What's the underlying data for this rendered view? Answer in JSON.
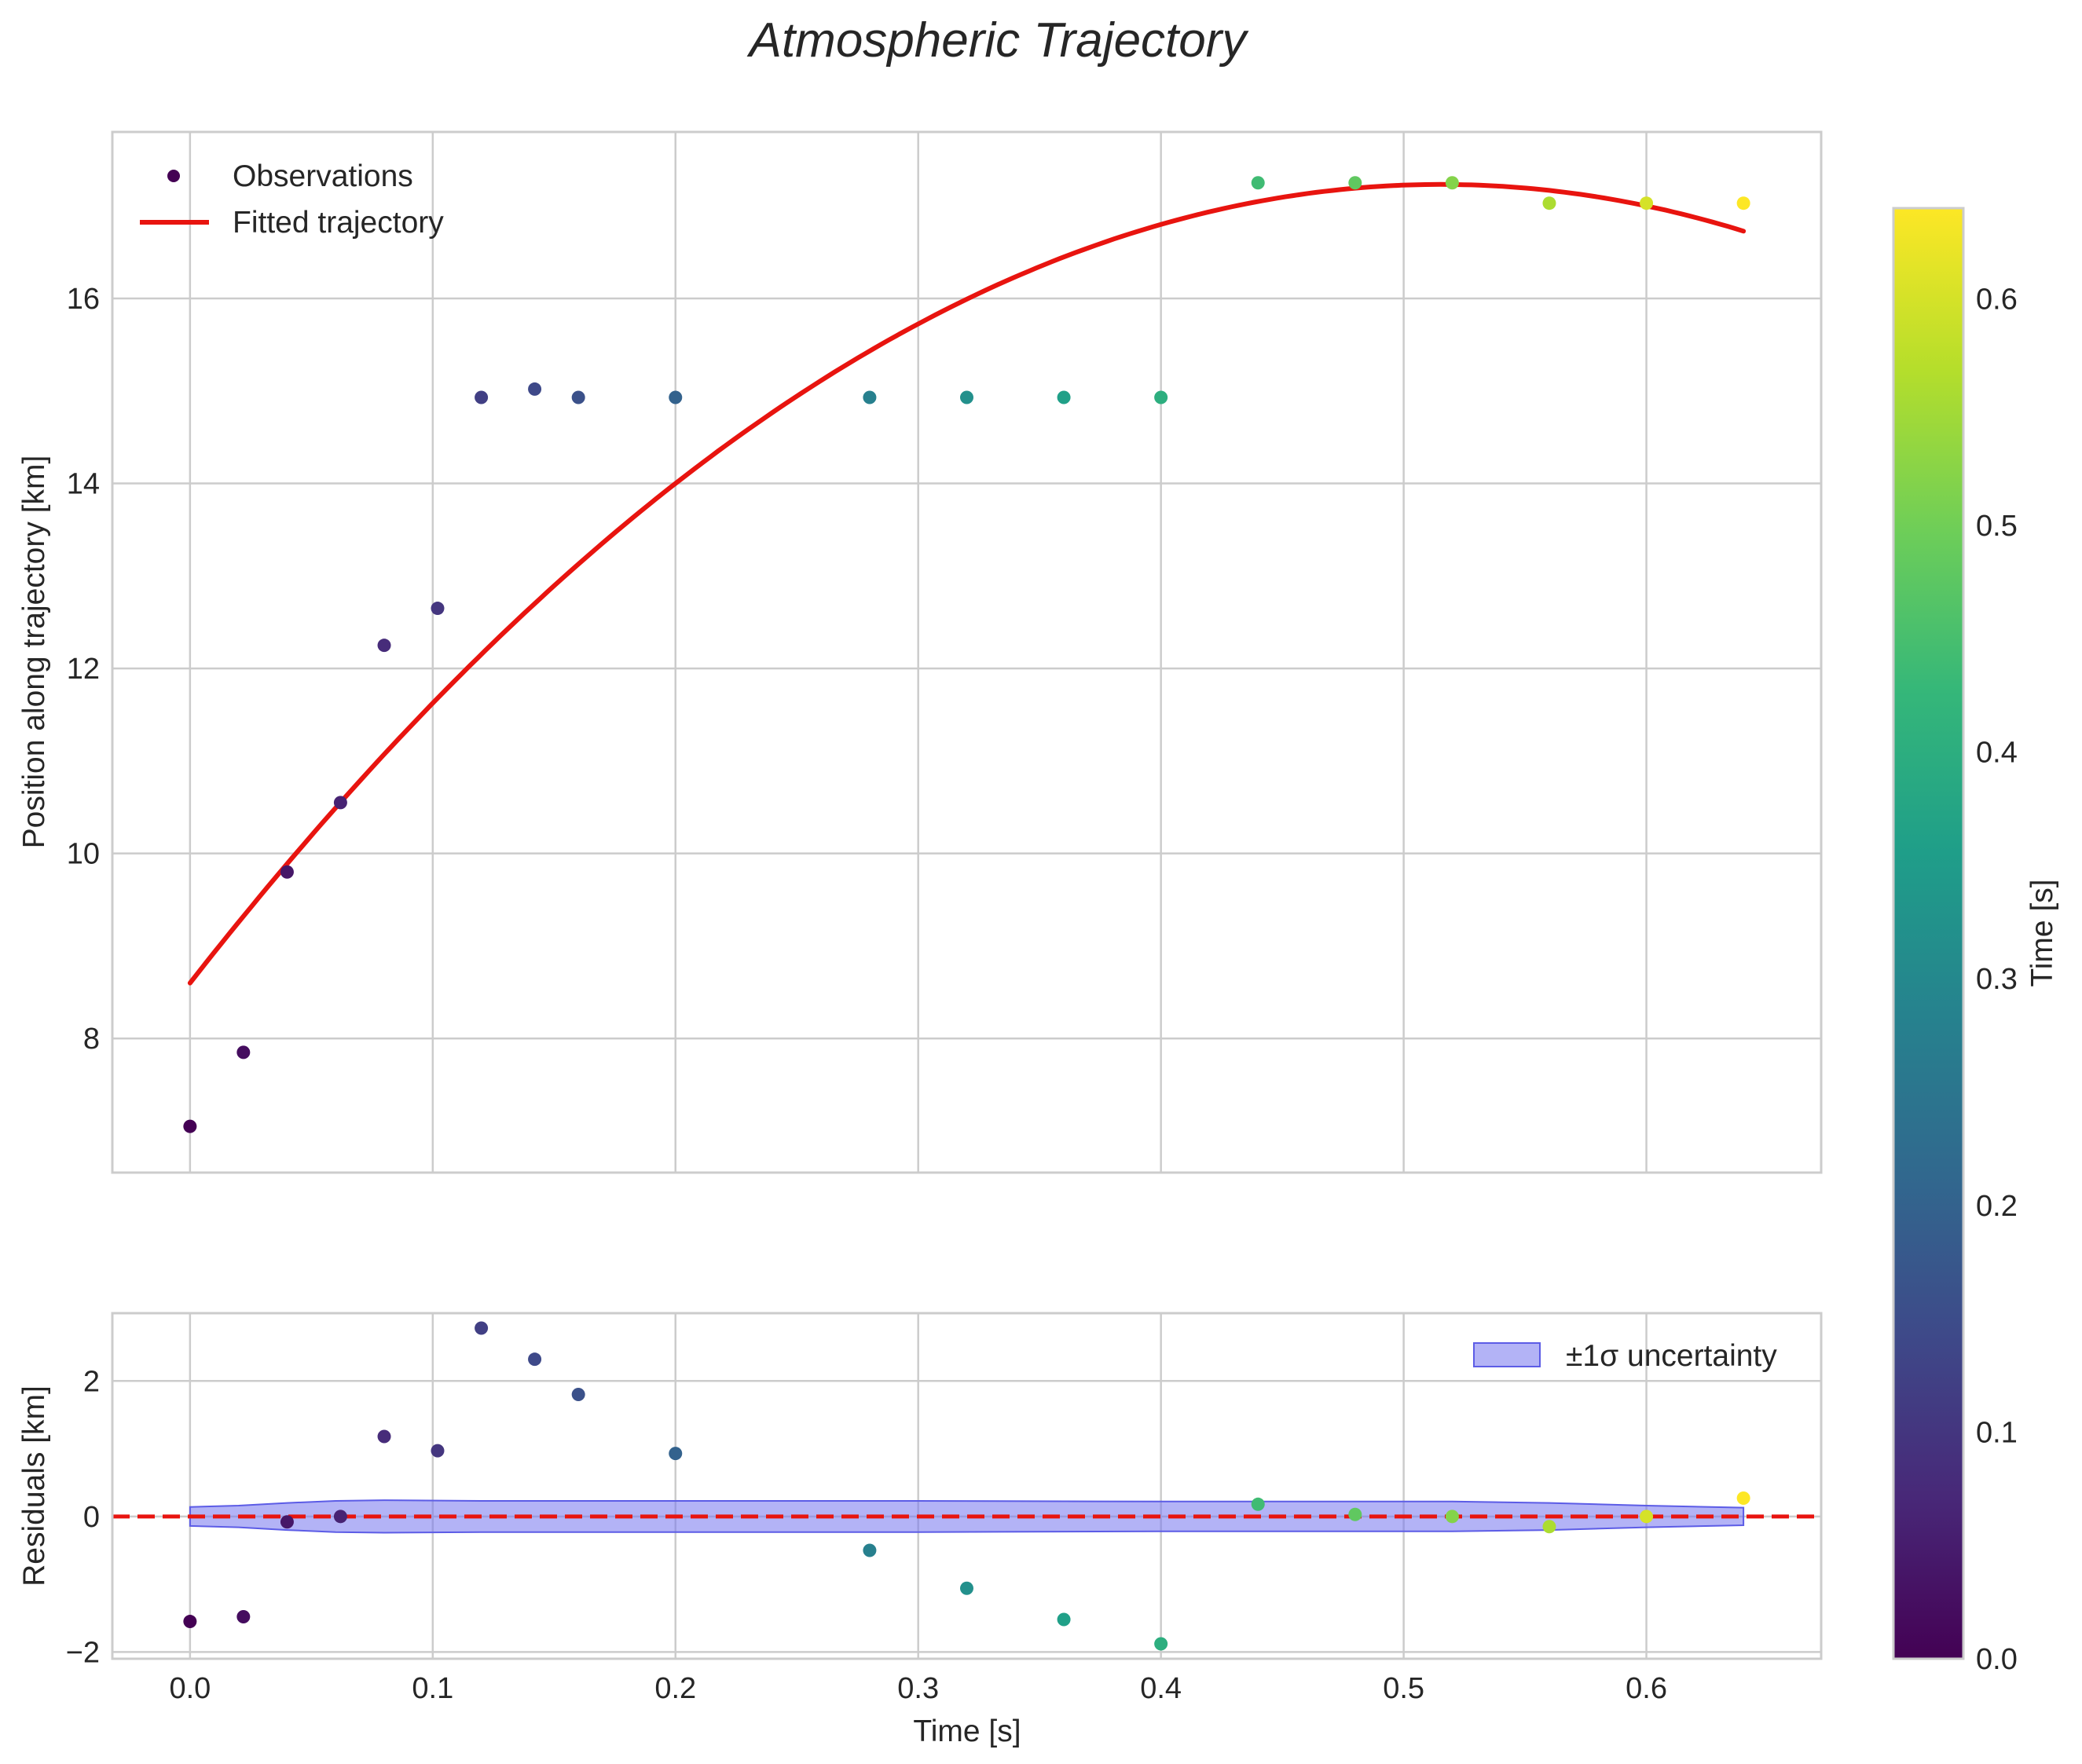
{
  "chart_data": {
    "type": "scatter",
    "title": "Atmospheric Trajectory",
    "colormap": "viridis",
    "x": [
      0.0,
      0.022,
      0.04,
      0.062,
      0.08,
      0.102,
      0.12,
      0.142,
      0.16,
      0.2,
      0.28,
      0.32,
      0.36,
      0.4,
      0.44,
      0.48,
      0.52,
      0.56,
      0.6,
      0.64
    ],
    "top_panel": {
      "ylabel": "Position along trajectory [km]",
      "ylim": [
        6.55,
        17.8
      ],
      "yticks": [
        8,
        10,
        12,
        14,
        16
      ],
      "observations": [
        7.05,
        7.85,
        9.8,
        10.55,
        12.25,
        12.65,
        14.93,
        15.02,
        14.93,
        14.93,
        14.93,
        14.93,
        14.93,
        14.93,
        17.25,
        17.25,
        17.25,
        17.03,
        17.03,
        17.03
      ],
      "fit": {
        "label": "Fitted trajectory",
        "color": "#e8140f",
        "quadratic": [
          8.6,
          33.5,
          -32.5
        ],
        "x_range": [
          0.0,
          0.64
        ]
      },
      "legend": {
        "position": "top-left",
        "observations_label": "Observations",
        "fit_label": "Fitted trajectory"
      }
    },
    "bottom_panel": {
      "ylabel": "Residuals [km]",
      "xlabel": "Time [s]",
      "ylim": [
        -2.1,
        3.0
      ],
      "yticks": [
        -2,
        0,
        2
      ],
      "residuals": [
        -1.55,
        -1.48,
        -0.08,
        0.0,
        1.18,
        0.97,
        2.78,
        2.32,
        1.8,
        0.93,
        -0.5,
        -1.06,
        -1.52,
        -1.88,
        0.18,
        0.03,
        0.0,
        -0.15,
        0.0,
        0.27
      ],
      "zero_line_color": "#e8140f",
      "band": {
        "label": "±1σ uncertainty",
        "color": "#7575ee",
        "x": [
          0.0,
          0.02,
          0.04,
          0.06,
          0.08,
          0.12,
          0.2,
          0.3,
          0.4,
          0.44,
          0.52,
          0.56,
          0.6,
          0.64
        ],
        "halfwidth": [
          0.14,
          0.16,
          0.2,
          0.23,
          0.24,
          0.23,
          0.23,
          0.23,
          0.22,
          0.22,
          0.22,
          0.2,
          0.16,
          0.13
        ]
      },
      "legend": {
        "position": "top-right"
      }
    },
    "xlim": [
      -0.032,
      0.672
    ],
    "xticks": [
      0.0,
      0.1,
      0.2,
      0.3,
      0.4,
      0.5,
      0.6
    ],
    "xtick_labels": [
      "0.0",
      "0.1",
      "0.2",
      "0.3",
      "0.4",
      "0.5",
      "0.6"
    ],
    "colorbar": {
      "label": "Time [s]",
      "range": [
        0.0,
        0.64
      ],
      "ticks": [
        0.0,
        0.1,
        0.2,
        0.3,
        0.4,
        0.5,
        0.6
      ],
      "tick_labels": [
        "0.0",
        "0.1",
        "0.2",
        "0.3",
        "0.4",
        "0.5",
        "0.6"
      ]
    },
    "grid": true
  }
}
